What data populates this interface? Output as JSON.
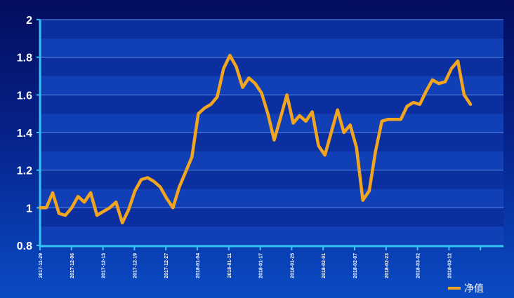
{
  "chart_data": {
    "type": "line",
    "title": "",
    "xlabel": "",
    "ylabel": "",
    "ylim": [
      0.8,
      2
    ],
    "yticks": [
      "0.8",
      "1",
      "1.2",
      "1.4",
      "1.6",
      "1.8",
      "2"
    ],
    "xtick_labels": [
      "2017-11-29",
      "2017-12-06",
      "2017-12-13",
      "2017-12-19",
      "2017-12-27",
      "2018-01-04",
      "2018-01-11",
      "2018-01-17",
      "2018-01-25",
      "2018-02-01",
      "2018-02-07",
      "2018-02-23",
      "2018-03-02",
      "2018-03-12"
    ],
    "grid": true,
    "legend_position": "bottom-right",
    "colors": {
      "line": "#f2a51e",
      "band_dark": "#0b2f9e",
      "band_light": "#113fb6",
      "gridline": "#5f8dec",
      "axis": "#35c3f5"
    },
    "series": [
      {
        "name": "净值",
        "values": [
          1.0,
          1.0,
          1.08,
          0.97,
          0.96,
          1.0,
          1.06,
          1.03,
          1.08,
          0.96,
          0.98,
          1.0,
          1.03,
          0.92,
          0.99,
          1.09,
          1.15,
          1.16,
          1.14,
          1.11,
          1.05,
          1.0,
          1.11,
          1.19,
          1.27,
          1.5,
          1.53,
          1.55,
          1.59,
          1.74,
          1.81,
          1.75,
          1.64,
          1.69,
          1.66,
          1.61,
          1.5,
          1.36,
          1.48,
          1.6,
          1.45,
          1.49,
          1.46,
          1.51,
          1.33,
          1.28,
          1.4,
          1.52,
          1.4,
          1.44,
          1.32,
          1.04,
          1.09,
          1.3,
          1.46,
          1.47,
          1.47,
          1.47,
          1.54,
          1.56,
          1.55,
          1.62,
          1.68,
          1.66,
          1.67,
          1.74,
          1.78,
          1.6,
          1.55
        ]
      }
    ]
  }
}
